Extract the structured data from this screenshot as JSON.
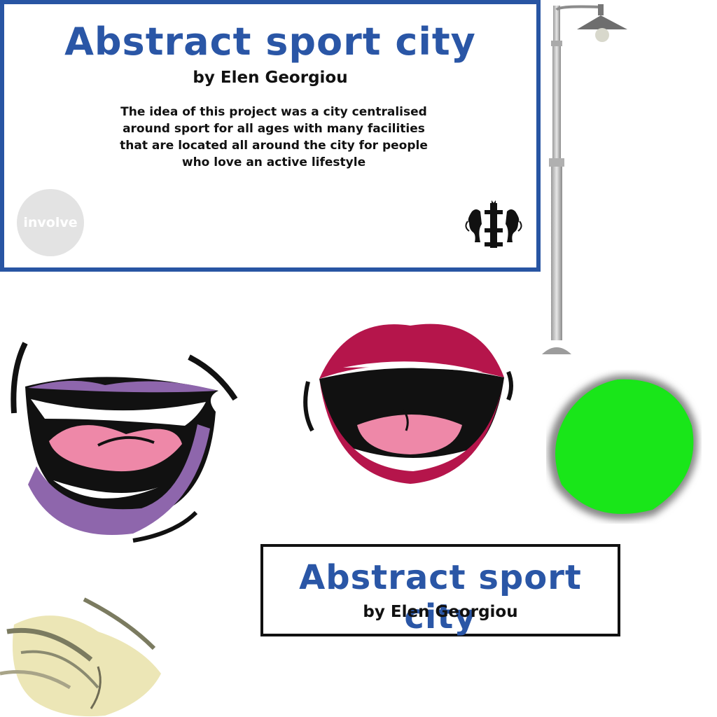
{
  "info_panel": {
    "title": "Abstract sport city",
    "author": "by Elen Georgiou",
    "description": "The idea of this project was a city centralised around sport for all ages with many facilities that are located all around the city for people who love an active lifestyle",
    "badge_text": "involve",
    "border_color": "#2855a3",
    "title_color": "#2a56a6"
  },
  "title_box": {
    "title": "Abstract sport city",
    "author": "by Elen Georgiou"
  },
  "graphics": {
    "lamp": "street-lamp",
    "crest": "heraldic-crest-logo",
    "purple_mouth_color": "#8e66ac",
    "red_mouth_color": "#b5154b",
    "tongue_color": "#ee88a8",
    "green_blob_color": "#19e619"
  }
}
